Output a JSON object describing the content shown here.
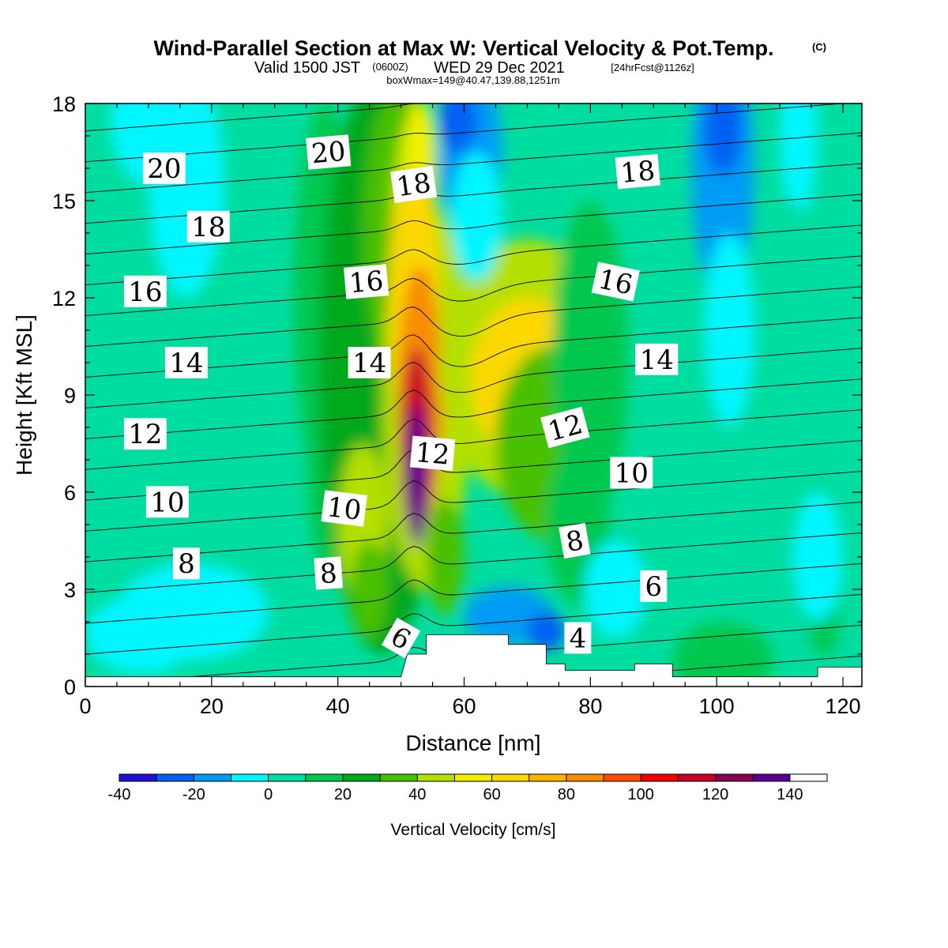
{
  "header": {
    "title": "Wind-Parallel Section at Max W: Vertical Velocity & Pot.Temp.",
    "copyright_mark": "(C)",
    "valid_prefix": "Valid 1500 JST",
    "valid_utc": "(0600Z)",
    "valid_date": "WED 29 Dec 2021",
    "forecast_info": "[24hrFcst@1126z]",
    "box_info": "boxWmax=149@40.47,139.88,1251m"
  },
  "chart_data": {
    "type": "heatmap",
    "xlabel": "Distance [nm]",
    "ylabel": "Height [Kft MSL]",
    "xlim": [
      0,
      123
    ],
    "ylim": [
      0,
      18
    ],
    "x_ticks": [
      0,
      20,
      40,
      60,
      80,
      100,
      120
    ],
    "y_ticks": [
      0,
      3,
      6,
      9,
      12,
      15,
      18
    ],
    "colorbar": {
      "title": "Vertical Velocity [cm/s]",
      "levels": [
        -40,
        -30,
        -20,
        -10,
        0,
        10,
        20,
        30,
        40,
        50,
        60,
        70,
        80,
        90,
        100,
        110,
        120,
        130,
        140,
        150
      ],
      "tick_labels": [
        "-40",
        "-20",
        "0",
        "20",
        "40",
        "60",
        "80",
        "100",
        "120",
        "140"
      ],
      "tick_values": [
        -40,
        -20,
        0,
        20,
        40,
        60,
        80,
        100,
        120,
        140
      ],
      "colors": [
        "#1f10d8",
        "#0060f2",
        "#009bf5",
        "#00f6ff",
        "#00dda0",
        "#00c850",
        "#00a81c",
        "#48c000",
        "#b4e000",
        "#f0f000",
        "#fcd800",
        "#fcb400",
        "#f88c00",
        "#ff4c00",
        "#f40000",
        "#c80028",
        "#8a0050",
        "#5a0090"
      ]
    },
    "vertical_velocity_features": [
      {
        "name": "main updraft core",
        "x": 52.5,
        "z": 6.3,
        "w": 149
      },
      {
        "name": "updraft column",
        "x_range": [
          36,
          60
        ],
        "z_range": [
          1,
          18
        ],
        "w": 30
      },
      {
        "name": "secondary updraft",
        "x": 70,
        "z": 9.5,
        "w": 60
      },
      {
        "name": "downdraft aloft",
        "x": 60,
        "z": 17,
        "w": -20
      },
      {
        "name": "downdraft aloft",
        "x": 101,
        "z": 17.5,
        "w": -30
      },
      {
        "name": "low-level downdraft",
        "x": 72,
        "z": 1.6,
        "w": -20
      }
    ],
    "terrain_kft": [
      {
        "x": 0,
        "z": 0.3
      },
      {
        "x": 50,
        "z": 0.3
      },
      {
        "x": 51,
        "z": 1.0
      },
      {
        "x": 54,
        "z": 1.0
      },
      {
        "x": 54,
        "z": 1.6
      },
      {
        "x": 67,
        "z": 1.6
      },
      {
        "x": 67,
        "z": 1.3
      },
      {
        "x": 73,
        "z": 1.3
      },
      {
        "x": 73,
        "z": 0.7
      },
      {
        "x": 76,
        "z": 0.7
      },
      {
        "x": 76,
        "z": 0.5
      },
      {
        "x": 87,
        "z": 0.5
      },
      {
        "x": 87,
        "z": 0.7
      },
      {
        "x": 93,
        "z": 0.7
      },
      {
        "x": 93,
        "z": 0.3
      },
      {
        "x": 116,
        "z": 0.3
      },
      {
        "x": 116,
        "z": 0.6
      },
      {
        "x": 123,
        "z": 0.6
      }
    ],
    "pot_temp_contour_labels": [
      {
        "label": "20",
        "x": 12.5,
        "z": 16.0
      },
      {
        "label": "18",
        "x": 19.5,
        "z": 14.2
      },
      {
        "label": "16",
        "x": 9.5,
        "z": 12.2
      },
      {
        "label": "14",
        "x": 16.0,
        "z": 10.0
      },
      {
        "label": "12",
        "x": 9.5,
        "z": 7.8
      },
      {
        "label": "10",
        "x": 13.0,
        "z": 5.7
      },
      {
        "label": "8",
        "x": 16.0,
        "z": 3.8
      },
      {
        "label": "20",
        "x": 38.5,
        "z": 16.5
      },
      {
        "label": "18",
        "x": 52.0,
        "z": 15.5
      },
      {
        "label": "16",
        "x": 44.5,
        "z": 12.5
      },
      {
        "label": "14",
        "x": 45.0,
        "z": 10.0
      },
      {
        "label": "12",
        "x": 55.0,
        "z": 7.2
      },
      {
        "label": "10",
        "x": 41.0,
        "z": 5.5
      },
      {
        "label": "8",
        "x": 38.5,
        "z": 3.5
      },
      {
        "label": "6",
        "x": 50.0,
        "z": 1.5
      },
      {
        "label": "18",
        "x": 87.5,
        "z": 15.9
      },
      {
        "label": "16",
        "x": 84.0,
        "z": 12.5
      },
      {
        "label": "14",
        "x": 90.5,
        "z": 10.1
      },
      {
        "label": "12",
        "x": 76.0,
        "z": 8.0
      },
      {
        "label": "10",
        "x": 86.5,
        "z": 6.6
      },
      {
        "label": "8",
        "x": 77.5,
        "z": 4.5
      },
      {
        "label": "6",
        "x": 90.0,
        "z": 3.1
      },
      {
        "label": "4",
        "x": 78.0,
        "z": 1.5
      }
    ]
  }
}
